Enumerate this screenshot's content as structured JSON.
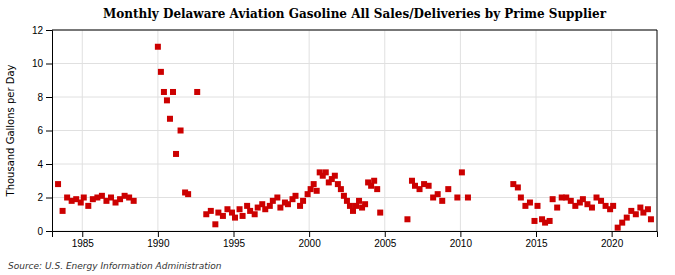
{
  "chart_data": {
    "type": "scatter",
    "title": "Monthly Delaware Aviation Gasoline All Sales/Deliveries by Prime Supplier",
    "ylabel": "Thousand Gallons per Day",
    "annotations": [
      "Source: U.S. Energy Information Administration"
    ],
    "color": "#cc0000",
    "marker": "square",
    "grid": true,
    "xlim": [
      1983,
      2023
    ],
    "ylim": [
      0,
      12
    ],
    "xticks": [
      1985,
      1990,
      1995,
      2000,
      2005,
      2010,
      2015,
      2020
    ],
    "yticks": [
      0,
      2,
      4,
      6,
      8,
      10,
      12
    ],
    "x": [
      1983.4,
      1983.7,
      1984.0,
      1984.3,
      1984.6,
      1984.9,
      1985.1,
      1985.4,
      1985.7,
      1986.0,
      1986.3,
      1986.6,
      1986.9,
      1987.2,
      1987.5,
      1987.8,
      1988.1,
      1988.4,
      1990.0,
      1990.2,
      1990.4,
      1990.6,
      1990.8,
      1991.0,
      1991.2,
      1991.5,
      1991.8,
      1992.0,
      1992.6,
      1993.2,
      1993.5,
      1993.8,
      1994.0,
      1994.3,
      1994.6,
      1994.9,
      1995.1,
      1995.4,
      1995.6,
      1995.9,
      1996.1,
      1996.4,
      1996.6,
      1996.9,
      1997.1,
      1997.4,
      1997.6,
      1997.9,
      1998.1,
      1998.4,
      1998.6,
      1998.9,
      1999.1,
      1999.4,
      1999.6,
      1999.9,
      2000.1,
      2000.3,
      2000.5,
      2000.7,
      2000.9,
      2001.1,
      2001.3,
      2001.5,
      2001.7,
      2001.9,
      2002.1,
      2002.3,
      2002.5,
      2002.7,
      2002.9,
      2003.1,
      2003.3,
      2003.5,
      2003.7,
      2003.9,
      2004.1,
      2004.3,
      2004.5,
      2004.7,
      2006.5,
      2006.8,
      2007.0,
      2007.3,
      2007.6,
      2007.9,
      2008.2,
      2008.5,
      2008.8,
      2009.2,
      2009.8,
      2010.1,
      2010.5,
      2013.5,
      2013.8,
      2014.0,
      2014.3,
      2014.6,
      2014.9,
      2015.1,
      2015.4,
      2015.6,
      2015.9,
      2016.1,
      2016.4,
      2016.7,
      2017.0,
      2017.3,
      2017.6,
      2017.9,
      2018.1,
      2018.4,
      2018.7,
      2019.0,
      2019.3,
      2019.6,
      2019.9,
      2020.1,
      2020.4,
      2020.7,
      2021.0,
      2021.3,
      2021.6,
      2021.9,
      2022.1,
      2022.4,
      2022.6
    ],
    "values": [
      2.8,
      1.2,
      2.0,
      1.8,
      1.9,
      1.7,
      2.0,
      1.5,
      1.9,
      2.0,
      2.1,
      1.8,
      2.0,
      1.7,
      1.9,
      2.1,
      2.0,
      1.8,
      11.0,
      9.5,
      8.3,
      7.8,
      6.7,
      8.3,
      4.6,
      6.0,
      2.3,
      2.2,
      8.3,
      1.0,
      1.2,
      0.4,
      1.1,
      0.9,
      1.3,
      1.1,
      0.8,
      1.3,
      0.9,
      1.5,
      1.2,
      1.0,
      1.4,
      1.6,
      1.3,
      1.5,
      1.8,
      2.0,
      1.4,
      1.7,
      1.6,
      1.9,
      2.1,
      1.5,
      1.8,
      2.2,
      2.5,
      2.8,
      2.4,
      3.5,
      3.3,
      3.5,
      2.9,
      3.1,
      3.3,
      2.8,
      2.5,
      2.1,
      1.8,
      1.5,
      1.2,
      1.5,
      1.8,
      1.4,
      1.6,
      2.9,
      2.7,
      3.0,
      2.5,
      1.1,
      0.7,
      3.0,
      2.7,
      2.5,
      2.8,
      2.7,
      2.0,
      2.2,
      1.8,
      2.5,
      2.0,
      3.5,
      2.0,
      2.8,
      2.6,
      2.0,
      1.5,
      1.7,
      0.6,
      1.5,
      0.7,
      0.5,
      0.6,
      1.9,
      1.4,
      2.0,
      2.0,
      1.8,
      1.5,
      1.7,
      1.9,
      1.6,
      1.4,
      2.0,
      1.8,
      1.5,
      1.3,
      1.5,
      0.2,
      0.5,
      0.8,
      1.2,
      1.0,
      1.4,
      1.1,
      1.3,
      0.7
    ]
  }
}
